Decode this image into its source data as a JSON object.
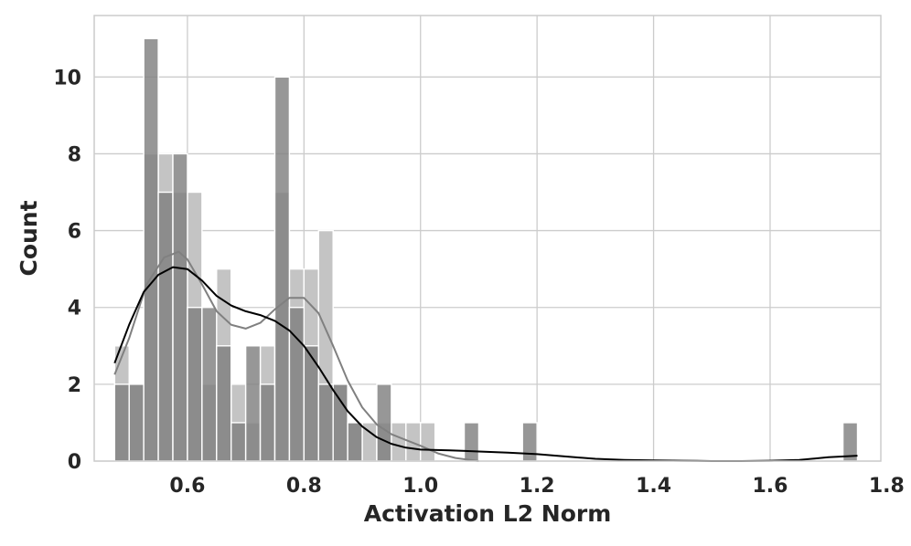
{
  "chart_data": {
    "type": "histogram",
    "title": "",
    "xlabel": "Activation L2 Norm",
    "ylabel": "Count",
    "xlim": [
      0.44,
      1.79
    ],
    "ylim": [
      0,
      11.6
    ],
    "xticks": [
      "0.6",
      "0.8",
      "1.0",
      "1.2",
      "1.4",
      "1.6",
      "1.8"
    ],
    "xtick_values": [
      0.6,
      0.8,
      1.0,
      1.2,
      1.4,
      1.6,
      1.8
    ],
    "yticks": [
      "0",
      "2",
      "4",
      "6",
      "8",
      "10"
    ],
    "ytick_values": [
      0,
      2,
      4,
      6,
      8,
      10
    ],
    "grid": true,
    "bin_width": 0.025,
    "series": [
      {
        "name": "dark-gray",
        "color": "#808080",
        "bins": [
          {
            "x0": 0.475,
            "count": 2
          },
          {
            "x0": 0.5,
            "count": 2
          },
          {
            "x0": 0.525,
            "count": 11
          },
          {
            "x0": 0.55,
            "count": 7
          },
          {
            "x0": 0.575,
            "count": 8
          },
          {
            "x0": 0.6,
            "count": 4
          },
          {
            "x0": 0.625,
            "count": 4
          },
          {
            "x0": 0.65,
            "count": 3
          },
          {
            "x0": 0.675,
            "count": 1
          },
          {
            "x0": 0.7,
            "count": 3
          },
          {
            "x0": 0.725,
            "count": 2
          },
          {
            "x0": 0.75,
            "count": 10
          },
          {
            "x0": 0.775,
            "count": 4
          },
          {
            "x0": 0.8,
            "count": 3
          },
          {
            "x0": 0.825,
            "count": 2
          },
          {
            "x0": 0.85,
            "count": 2
          },
          {
            "x0": 0.875,
            "count": 1
          },
          {
            "x0": 0.925,
            "count": 2
          },
          {
            "x0": 1.075,
            "count": 1
          },
          {
            "x0": 1.175,
            "count": 1
          },
          {
            "x0": 1.725,
            "count": 1
          }
        ]
      },
      {
        "name": "light-gray",
        "color": "#c4c4c4",
        "bins": [
          {
            "x0": 0.475,
            "count": 3
          },
          {
            "x0": 0.5,
            "count": 2
          },
          {
            "x0": 0.525,
            "count": 8
          },
          {
            "x0": 0.55,
            "count": 8
          },
          {
            "x0": 0.575,
            "count": 7
          },
          {
            "x0": 0.6,
            "count": 7
          },
          {
            "x0": 0.625,
            "count": 2
          },
          {
            "x0": 0.65,
            "count": 5
          },
          {
            "x0": 0.675,
            "count": 2
          },
          {
            "x0": 0.7,
            "count": 1
          },
          {
            "x0": 0.725,
            "count": 3
          },
          {
            "x0": 0.75,
            "count": 7
          },
          {
            "x0": 0.775,
            "count": 5
          },
          {
            "x0": 0.8,
            "count": 5
          },
          {
            "x0": 0.825,
            "count": 6
          },
          {
            "x0": 0.85,
            "count": 2
          },
          {
            "x0": 0.875,
            "count": 1
          },
          {
            "x0": 0.9,
            "count": 1
          },
          {
            "x0": 0.925,
            "count": 1
          },
          {
            "x0": 0.95,
            "count": 1
          },
          {
            "x0": 0.975,
            "count": 1
          },
          {
            "x0": 1.0,
            "count": 1
          }
        ]
      }
    ],
    "kde": [
      {
        "name": "light-gray-kde",
        "color": "#808080",
        "points": [
          [
            0.475,
            2.25
          ],
          [
            0.5,
            3.2
          ],
          [
            0.53,
            4.6
          ],
          [
            0.56,
            5.3
          ],
          [
            0.585,
            5.45
          ],
          [
            0.6,
            5.25
          ],
          [
            0.625,
            4.6
          ],
          [
            0.65,
            3.9
          ],
          [
            0.675,
            3.55
          ],
          [
            0.7,
            3.45
          ],
          [
            0.725,
            3.6
          ],
          [
            0.75,
            3.95
          ],
          [
            0.775,
            4.25
          ],
          [
            0.8,
            4.25
          ],
          [
            0.825,
            3.85
          ],
          [
            0.85,
            3.0
          ],
          [
            0.875,
            2.1
          ],
          [
            0.9,
            1.4
          ],
          [
            0.925,
            0.95
          ],
          [
            0.95,
            0.7
          ],
          [
            0.975,
            0.55
          ],
          [
            1.0,
            0.4
          ],
          [
            1.03,
            0.2
          ],
          [
            1.06,
            0.08
          ],
          [
            1.1,
            0.0
          ]
        ]
      },
      {
        "name": "dark-gray-kde",
        "color": "#000000",
        "points": [
          [
            0.475,
            2.55
          ],
          [
            0.5,
            3.55
          ],
          [
            0.525,
            4.4
          ],
          [
            0.55,
            4.85
          ],
          [
            0.575,
            5.05
          ],
          [
            0.6,
            5.0
          ],
          [
            0.625,
            4.7
          ],
          [
            0.65,
            4.3
          ],
          [
            0.675,
            4.05
          ],
          [
            0.7,
            3.9
          ],
          [
            0.725,
            3.8
          ],
          [
            0.75,
            3.65
          ],
          [
            0.775,
            3.4
          ],
          [
            0.8,
            3.0
          ],
          [
            0.825,
            2.45
          ],
          [
            0.85,
            1.85
          ],
          [
            0.875,
            1.3
          ],
          [
            0.9,
            0.9
          ],
          [
            0.925,
            0.62
          ],
          [
            0.95,
            0.45
          ],
          [
            0.975,
            0.35
          ],
          [
            1.0,
            0.3
          ],
          [
            1.05,
            0.28
          ],
          [
            1.1,
            0.25
          ],
          [
            1.15,
            0.22
          ],
          [
            1.2,
            0.18
          ],
          [
            1.25,
            0.12
          ],
          [
            1.3,
            0.06
          ],
          [
            1.35,
            0.03
          ],
          [
            1.4,
            0.02
          ],
          [
            1.45,
            0.01
          ],
          [
            1.5,
            0.0
          ],
          [
            1.55,
            0.0
          ],
          [
            1.6,
            0.01
          ],
          [
            1.65,
            0.03
          ],
          [
            1.7,
            0.1
          ],
          [
            1.75,
            0.14
          ]
        ]
      }
    ]
  }
}
